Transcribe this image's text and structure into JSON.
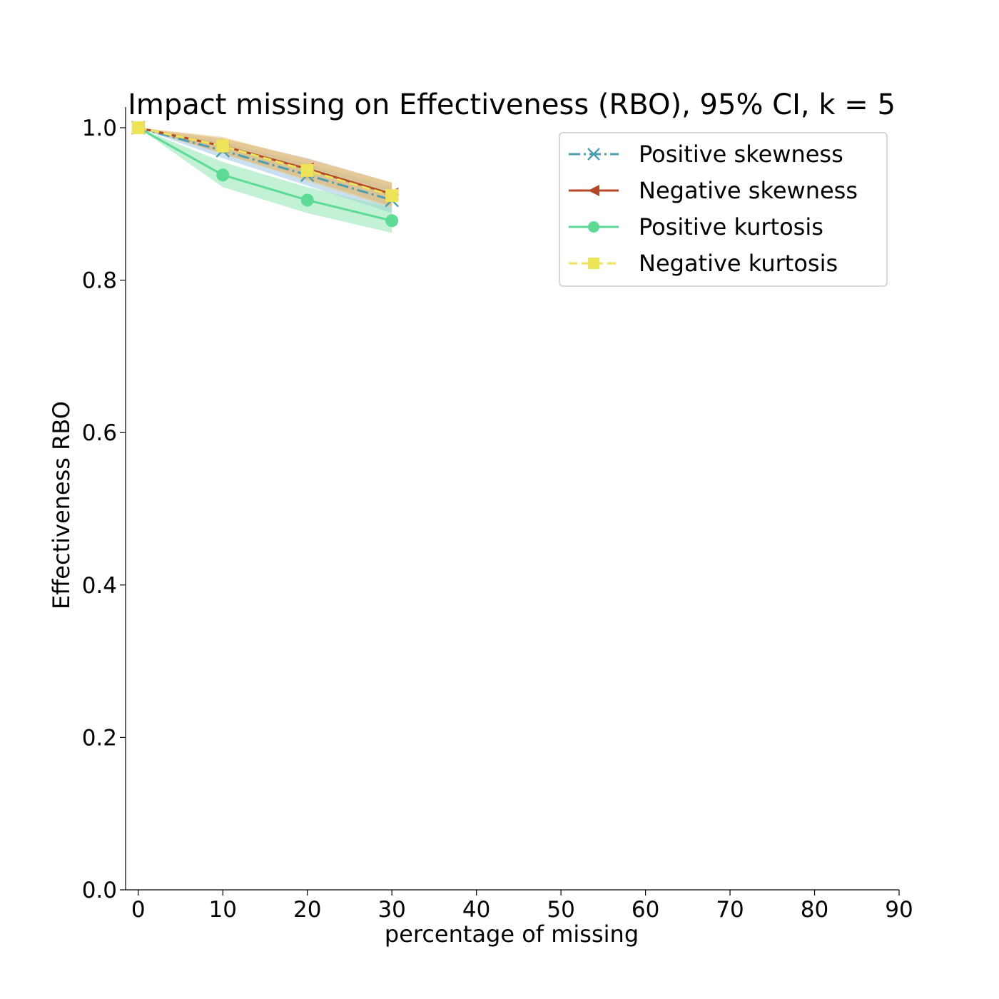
{
  "chart_data": {
    "type": "line",
    "title": "Impact missing on Effectiveness (RBO), 95% CI, k = 5",
    "xlabel": "percentage of missing",
    "ylabel": "Effectiveness RBO",
    "xlim": [
      -1.5,
      90
    ],
    "ylim": [
      0,
      1.0
    ],
    "x_ticks": [
      0,
      10,
      20,
      30,
      40,
      50,
      60,
      70,
      80,
      90
    ],
    "y_ticks": [
      0.0,
      0.2,
      0.4,
      0.6,
      0.8,
      1.0
    ],
    "x_tick_labels": [
      "0",
      "10",
      "20",
      "30",
      "40",
      "50",
      "60",
      "70",
      "80",
      "90"
    ],
    "y_tick_labels": [
      "0.0",
      "0.2",
      "0.4",
      "0.6",
      "0.8",
      "1.0"
    ],
    "grid": false,
    "legend_position": "top-right",
    "x": [
      0,
      10,
      20,
      30
    ],
    "series": [
      {
        "name": "Positive skewness",
        "values": [
          1.0,
          0.97,
          0.938,
          0.905
        ],
        "ci_low": [
          1.0,
          0.96,
          0.924,
          0.888
        ],
        "ci_high": [
          1.0,
          0.981,
          0.953,
          0.922
        ],
        "color": "#4f9db0",
        "band_color": "#9fc6e6",
        "line_style": "dashdot",
        "marker": "x"
      },
      {
        "name": "Negative skewness",
        "values": [
          1.0,
          0.976,
          0.946,
          0.913
        ],
        "ci_low": [
          1.0,
          0.966,
          0.932,
          0.897
        ],
        "ci_high": [
          1.0,
          0.986,
          0.96,
          0.928
        ],
        "color": "#b5472a",
        "band_color": "#c9a17a",
        "line_style": "solid",
        "marker": "triangle-left"
      },
      {
        "name": "Positive kurtosis",
        "values": [
          1.0,
          0.938,
          0.905,
          0.878
        ],
        "ci_low": [
          1.0,
          0.922,
          0.888,
          0.862
        ],
        "ci_high": [
          1.0,
          0.955,
          0.922,
          0.895
        ],
        "color": "#5ddb95",
        "band_color": "#8fe5b5",
        "line_style": "solid",
        "marker": "circle"
      },
      {
        "name": "Negative kurtosis",
        "values": [
          1.0,
          0.976,
          0.944,
          0.911
        ],
        "ci_low": [
          1.0,
          0.966,
          0.93,
          0.895
        ],
        "ci_high": [
          1.0,
          0.988,
          0.958,
          0.928
        ],
        "color": "#ede45a",
        "band_color": "#e8c87e",
        "line_style": "dashed",
        "marker": "square"
      }
    ]
  }
}
